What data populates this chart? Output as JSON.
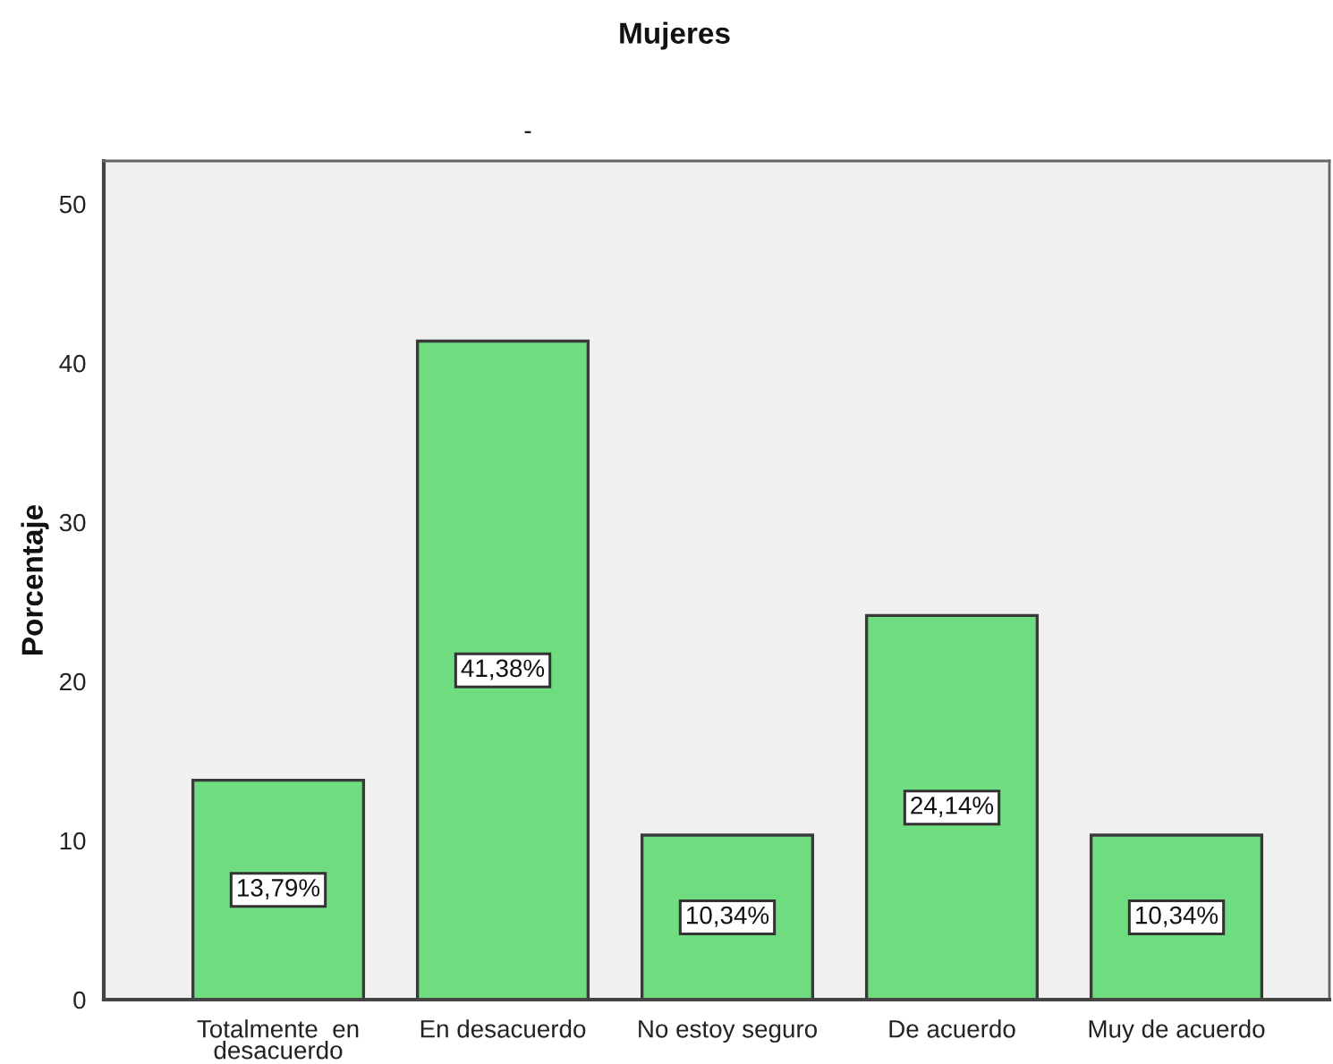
{
  "chart_data": {
    "type": "bar",
    "title": "Mujeres",
    "subtitle": "-",
    "ylabel": "Porcentaje",
    "categories": [
      "Totalmente  en desacuerdo",
      "En desacuerdo",
      "No estoy seguro",
      "De acuerdo",
      "Muy de acuerdo"
    ],
    "values": [
      13.79,
      41.38,
      10.34,
      24.14,
      10.34
    ],
    "value_labels": [
      "13,79%",
      "41,38%",
      "10,34%",
      "24,14%",
      "10,34%"
    ],
    "color": "#70dc80",
    "ylim": [
      0,
      52.7
    ],
    "yticks": [
      0,
      10,
      20,
      30,
      40,
      50
    ]
  }
}
